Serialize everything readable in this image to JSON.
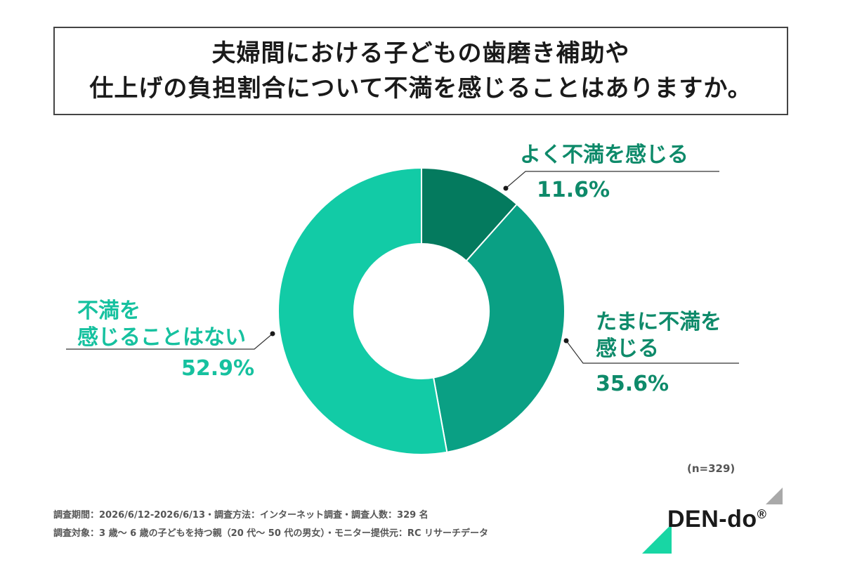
{
  "title": {
    "line1": "夫婦間における子どもの歯磨き補助や",
    "line2": "仕上げの負担割合について不満を感じることはありますか。"
  },
  "chart_data": {
    "type": "pie",
    "donut": true,
    "slices": [
      {
        "label": "よく不満を感じる",
        "label_lines": [
          "よく不満を感じる"
        ],
        "value": 11.6,
        "display": "11.6%",
        "color": "#047a5e",
        "text_color": "#0e8a6a"
      },
      {
        "label": "たまに不満を感じる",
        "label_lines": [
          "たまに不満を",
          "感じる"
        ],
        "value": 35.6,
        "display": "35.6%",
        "color": "#0aa084",
        "text_color": "#0e8a6a"
      },
      {
        "label": "不満を感じることはない",
        "label_lines": [
          "不満を",
          "感じることはない"
        ],
        "value": 52.9,
        "display": "52.9%",
        "color": "#12cba6",
        "text_color": "#16c19f"
      }
    ],
    "sample_note": "(n=329)"
  },
  "footer": {
    "line1": "調査期間：2026/6/12-2026/6/13・調査方法：インターネット調査・調査人数：329 名",
    "line2": "調査対象：3 歳〜 6 歳の子どもを持つ親（20 代〜 50 代の男女）・モニター提供元：RC リサーチデータ"
  },
  "logo": {
    "text": "DEN-do",
    "mark": "®"
  }
}
